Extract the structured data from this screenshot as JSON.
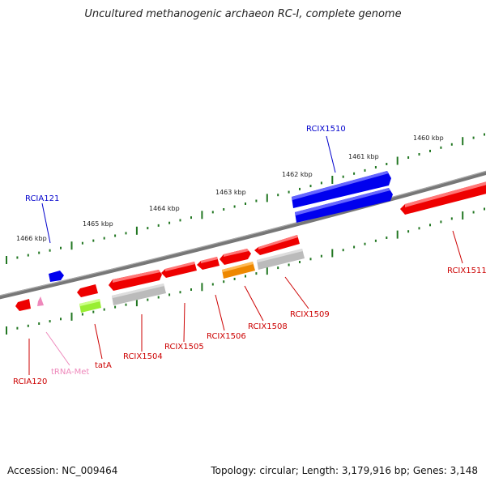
{
  "title": "Uncultured methanogenic archaeon RC-I, complete genome",
  "footer": {
    "accession": "Accession: NC_009464",
    "summary": "Topology: circular; Length: 3,179,916 bp; Genes: 3,148"
  },
  "scale_labels": [
    "1460 kbp",
    "1461 kbp",
    "1462 kbp",
    "1463 kbp",
    "1464 kbp",
    "1465 kbp",
    "1466 kbp"
  ],
  "colors": {
    "forward_gene": "#0000ee",
    "reverse_gene": "#ee0000",
    "rrna_like": "#ee8800",
    "trna": "#ee88bb",
    "misc": "#99ee33",
    "pseudo": "#bbbbbb",
    "backbone": "#777777",
    "tick": "#227722",
    "label_blue": "#0000cc",
    "label_red": "#cc0000",
    "label_pink": "#ee88bb"
  },
  "gene_labels": [
    "RCIX1510",
    "RCIA121",
    "RCIX1511",
    "RCIA120",
    "tRNA-Met",
    "tatA",
    "RCIX1504",
    "RCIX1505",
    "RCIX1506",
    "RCIX1508",
    "RCIX1509"
  ]
}
